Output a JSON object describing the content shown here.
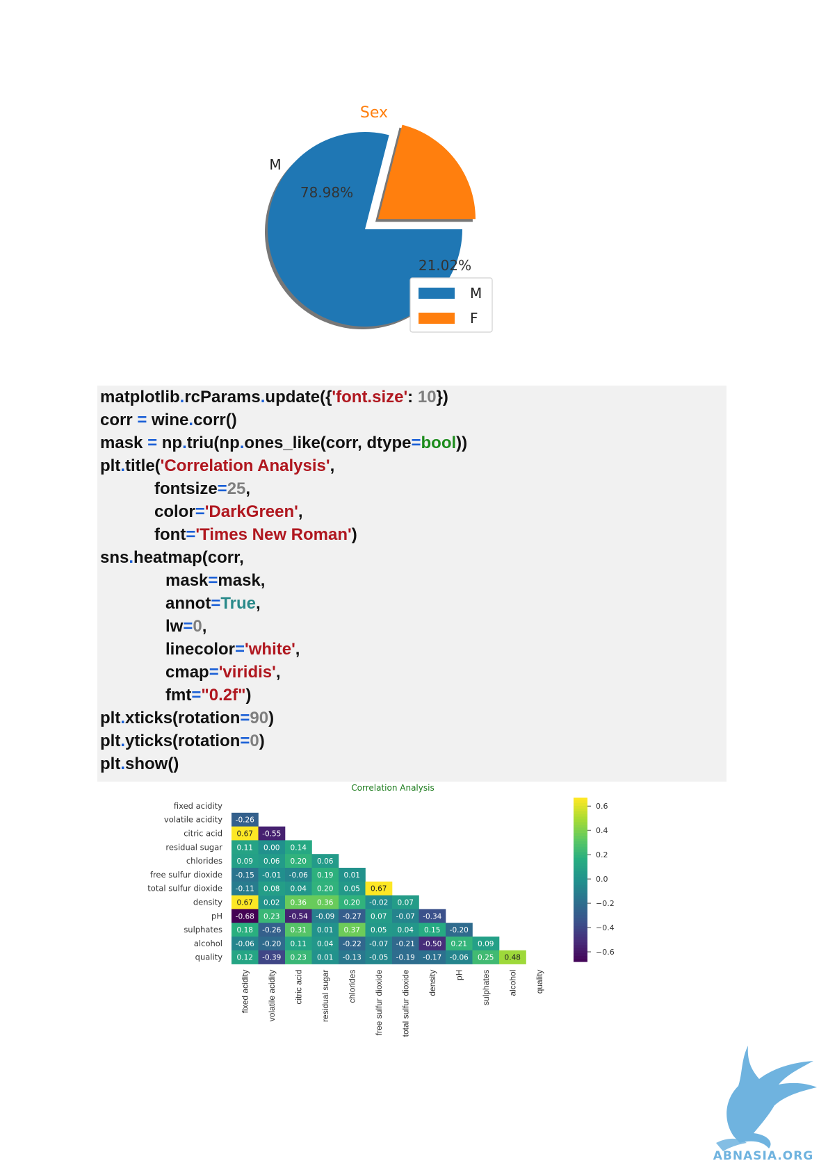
{
  "pie_chart": {
    "type": "pie",
    "title": "Sex",
    "labels": [
      "M",
      "F"
    ],
    "values": [
      78.98,
      21.02
    ],
    "value_labels": [
      "78.98%",
      "21.02%"
    ],
    "colors": [
      "#1f77b4",
      "#ff7f0e"
    ],
    "title_color": "#ff7f0e",
    "legend": [
      "M",
      "F"
    ]
  },
  "code": {
    "lines": [
      {
        "indent": 0,
        "tokens": [
          [
            "matplotlib",
            "n"
          ],
          [
            ".",
            "o"
          ],
          [
            "rcParams",
            "n"
          ],
          [
            ".",
            "o"
          ],
          [
            "update({",
            "n"
          ],
          [
            "'font.size'",
            "s"
          ],
          [
            ": ",
            "n"
          ],
          [
            "10",
            "d"
          ],
          [
            "})",
            "n"
          ]
        ]
      },
      {
        "indent": 0,
        "tokens": [
          [
            "corr ",
            "n"
          ],
          [
            "=",
            "o"
          ],
          [
            " wine",
            "n"
          ],
          [
            ".",
            "o"
          ],
          [
            "corr()",
            "n"
          ]
        ]
      },
      {
        "indent": 0,
        "tokens": [
          [
            "mask ",
            "n"
          ],
          [
            "=",
            "o"
          ],
          [
            " np",
            "n"
          ],
          [
            ".",
            "o"
          ],
          [
            "triu(np",
            "n"
          ],
          [
            ".",
            "o"
          ],
          [
            "ones_like(corr, dtype",
            "n"
          ],
          [
            "=",
            "o"
          ],
          [
            "bool",
            "k"
          ],
          [
            "))",
            "n"
          ]
        ]
      },
      {
        "indent": 0,
        "tokens": [
          [
            "plt",
            "n"
          ],
          [
            ".",
            "o"
          ],
          [
            "title(",
            "n"
          ],
          [
            "'Correlation Analysis'",
            "s"
          ],
          [
            ",",
            "n"
          ]
        ]
      },
      {
        "indent": 1,
        "tokens": [
          [
            "fontsize",
            "n"
          ],
          [
            "=",
            "o"
          ],
          [
            "25",
            "d"
          ],
          [
            ",",
            "n"
          ]
        ]
      },
      {
        "indent": 1,
        "tokens": [
          [
            "color",
            "n"
          ],
          [
            "=",
            "o"
          ],
          [
            "'DarkGreen'",
            "s"
          ],
          [
            ",",
            "n"
          ]
        ]
      },
      {
        "indent": 1,
        "tokens": [
          [
            "font",
            "n"
          ],
          [
            "=",
            "o"
          ],
          [
            "'Times New Roman'",
            "s"
          ],
          [
            ")",
            "n"
          ]
        ]
      },
      {
        "indent": 0,
        "tokens": [
          [
            "sns",
            "n"
          ],
          [
            ".",
            "o"
          ],
          [
            "heatmap(corr,",
            "n"
          ]
        ]
      },
      {
        "indent": 2,
        "tokens": [
          [
            "mask",
            "n"
          ],
          [
            "=",
            "o"
          ],
          [
            "mask,",
            "n"
          ]
        ]
      },
      {
        "indent": 2,
        "tokens": [
          [
            "annot",
            "n"
          ],
          [
            "=",
            "o"
          ],
          [
            "True",
            "c"
          ],
          [
            ",",
            "n"
          ]
        ]
      },
      {
        "indent": 2,
        "tokens": [
          [
            "lw",
            "n"
          ],
          [
            "=",
            "o"
          ],
          [
            "0",
            "d"
          ],
          [
            ",",
            "n"
          ]
        ]
      },
      {
        "indent": 2,
        "tokens": [
          [
            "linecolor",
            "n"
          ],
          [
            "=",
            "o"
          ],
          [
            "'white'",
            "s"
          ],
          [
            ",",
            "n"
          ]
        ]
      },
      {
        "indent": 2,
        "tokens": [
          [
            "cmap",
            "n"
          ],
          [
            "=",
            "o"
          ],
          [
            "'viridis'",
            "s"
          ],
          [
            ",",
            "n"
          ]
        ]
      },
      {
        "indent": 2,
        "tokens": [
          [
            "fmt",
            "n"
          ],
          [
            "=",
            "o"
          ],
          [
            "\"0.2f\"",
            "s"
          ],
          [
            ")",
            "n"
          ]
        ]
      },
      {
        "indent": 0,
        "tokens": [
          [
            "plt",
            "n"
          ],
          [
            ".",
            "o"
          ],
          [
            "xticks(rotation",
            "n"
          ],
          [
            "=",
            "o"
          ],
          [
            "90",
            "d"
          ],
          [
            ")",
            "n"
          ]
        ]
      },
      {
        "indent": 0,
        "tokens": [
          [
            "plt",
            "n"
          ],
          [
            ".",
            "o"
          ],
          [
            "yticks(rotation",
            "n"
          ],
          [
            "=",
            "o"
          ],
          [
            "0",
            "d"
          ],
          [
            ")",
            "n"
          ]
        ]
      },
      {
        "indent": 0,
        "tokens": [
          [
            "plt",
            "n"
          ],
          [
            ".",
            "o"
          ],
          [
            "show()",
            "n"
          ]
        ]
      }
    ]
  },
  "chart_data": {
    "type": "heatmap",
    "title": "Correlation Analysis",
    "title_color": "#1a7a1a",
    "cmap": "viridis",
    "vmin": -0.68,
    "vmax": 0.67,
    "colorbar_ticks": [
      0.6,
      0.4,
      0.2,
      0.0,
      -0.2,
      -0.4,
      -0.6
    ],
    "colorbar_labels": [
      "0.6",
      "0.4",
      "0.2",
      "0.0",
      "−0.2",
      "−0.4",
      "−0.6"
    ],
    "labels": [
      "fixed acidity",
      "volatile acidity",
      "citric acid",
      "residual sugar",
      "chlorides",
      "free sulfur dioxide",
      "total sulfur dioxide",
      "density",
      "pH",
      "sulphates",
      "alcohol",
      "quality"
    ],
    "rows": [
      [],
      [
        -0.26
      ],
      [
        0.67,
        -0.55
      ],
      [
        0.11,
        0.0,
        0.14
      ],
      [
        0.09,
        0.06,
        0.2,
        0.06
      ],
      [
        -0.15,
        -0.01,
        -0.06,
        0.19,
        0.01
      ],
      [
        -0.11,
        0.08,
        0.04,
        0.2,
        0.05,
        0.67
      ],
      [
        0.67,
        0.02,
        0.36,
        0.36,
        0.2,
        -0.02,
        0.07
      ],
      [
        -0.68,
        0.23,
        -0.54,
        -0.09,
        -0.27,
        0.07,
        -0.07,
        -0.34
      ],
      [
        0.18,
        -0.26,
        0.31,
        0.01,
        0.37,
        0.05,
        0.04,
        0.15,
        -0.2
      ],
      [
        -0.06,
        -0.2,
        0.11,
        0.04,
        -0.22,
        -0.07,
        -0.21,
        -0.5,
        0.21,
        0.09
      ],
      [
        0.12,
        -0.39,
        0.23,
        0.01,
        -0.13,
        -0.05,
        -0.19,
        -0.17,
        -0.06,
        0.25,
        0.48
      ]
    ]
  },
  "logo": {
    "text": "ABNASIA.ORG",
    "color": "#6fb3df"
  }
}
